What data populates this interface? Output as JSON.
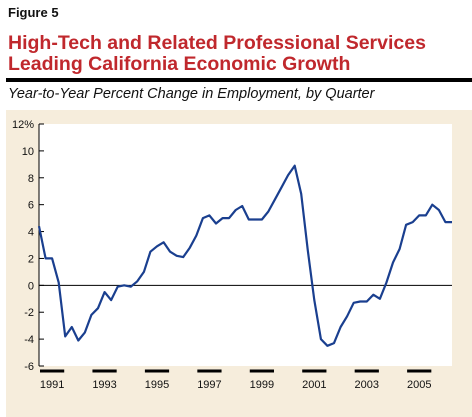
{
  "figure_label": "Figure 5",
  "title_line1": "High-Tech and Related Professional Services",
  "title_line2": "Leading California Economic Growth",
  "subtitle": "Year-to-Year Percent Change in Employment, by Quarter",
  "colors": {
    "title": "#c0282d",
    "panel": "#f6eddc",
    "line": "#1a3f8f"
  },
  "chart_data": {
    "type": "line",
    "title": "High-Tech and Related Professional Services Leading California Economic Growth",
    "ylabel": "Year-to-Year Percent Change in Employment, by Quarter",
    "xlabel": "",
    "ylim": [
      -6,
      12
    ],
    "xlim": [
      1991.0,
      2006.75
    ],
    "y_ticks": [
      "12%",
      "10",
      "8",
      "6",
      "4",
      "2",
      "0",
      "-2",
      "-4",
      "-6"
    ],
    "x_tick_labels": [
      "1991",
      "1993",
      "1995",
      "1997",
      "1999",
      "2001",
      "2003",
      "2005"
    ],
    "grid": false,
    "series": [
      {
        "x": [
          1991.0,
          1991.25,
          1991.5,
          1991.75,
          1992.0,
          1992.25,
          1992.5,
          1992.75,
          1993.0,
          1993.25,
          1993.5,
          1993.75,
          1994.0,
          1994.25,
          1994.5,
          1994.75,
          1995.0,
          1995.25,
          1995.5,
          1995.75,
          1996.0,
          1996.25,
          1996.5,
          1996.75,
          1997.0,
          1997.25,
          1997.5,
          1997.75,
          1998.0,
          1998.25,
          1998.5,
          1998.75,
          1999.0,
          1999.25,
          1999.5,
          1999.75,
          2000.0,
          2000.25,
          2000.5,
          2000.75,
          2001.0,
          2001.25,
          2001.5,
          2001.75,
          2002.0,
          2002.25,
          2002.5,
          2002.75,
          2003.0,
          2003.25,
          2003.5,
          2003.75,
          2004.0,
          2004.25,
          2004.5,
          2004.75,
          2005.0,
          2005.25,
          2005.5,
          2005.75,
          2006.0,
          2006.25,
          2006.5,
          2006.75
        ],
        "values": [
          4.4,
          2.0,
          2.0,
          0.2,
          -3.8,
          -3.1,
          -4.1,
          -3.5,
          -2.2,
          -1.7,
          -0.5,
          -1.1,
          -0.1,
          0.0,
          -0.1,
          0.3,
          1.0,
          2.5,
          2.9,
          3.2,
          2.5,
          2.2,
          2.1,
          2.8,
          3.7,
          5.0,
          5.2,
          4.6,
          5.0,
          5.0,
          5.6,
          5.9,
          4.9,
          4.9,
          4.9,
          5.5,
          6.4,
          7.3,
          8.2,
          8.9,
          6.8,
          2.6,
          -1.1,
          -4.0,
          -4.5,
          -4.3,
          -3.1,
          -2.3,
          -1.3,
          -1.2,
          -1.2,
          -0.7,
          -1.0,
          0.2,
          1.7,
          2.7,
          4.5,
          4.7,
          5.2,
          5.2,
          6.0,
          5.6,
          4.7,
          4.7
        ]
      }
    ]
  }
}
